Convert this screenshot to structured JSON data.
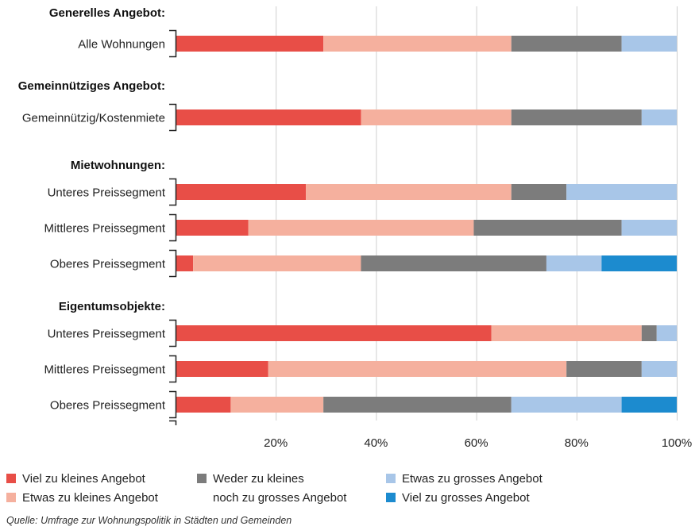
{
  "chart_data": {
    "type": "bar",
    "orientation": "horizontal",
    "stacked": true,
    "title": "",
    "xlabel": "",
    "ylabel": "",
    "xlim": [
      0,
      100
    ],
    "x_ticks": [
      "20%",
      "40%",
      "60%",
      "80%",
      "100%"
    ],
    "grid": true,
    "legend_position": "bottom",
    "groups": [
      {
        "label": "Generelles Angebot:",
        "rows": [
          {
            "label": "Alle Wohnungen",
            "values": [
              29.5,
              37.5,
              22,
              11,
              0
            ]
          }
        ]
      },
      {
        "label": "Gemeinnütziges Angebot:",
        "rows": [
          {
            "label": "Gemeinnützig/Kostenmiete",
            "values": [
              37,
              30,
              26,
              7,
              0
            ]
          }
        ]
      },
      {
        "label": "Mietwohnungen:",
        "rows": [
          {
            "label": "Unteres Preissegment",
            "values": [
              26,
              41,
              11,
              22,
              0
            ]
          },
          {
            "label": "Mittleres Preissegment",
            "values": [
              14.5,
              45,
              29.5,
              11,
              0
            ]
          },
          {
            "label": "Oberes Preissegment",
            "values": [
              3.5,
              33.5,
              37,
              11,
              15
            ]
          }
        ]
      },
      {
        "label": "Eigentumsobjekte:",
        "rows": [
          {
            "label": "Unteres Preissegment",
            "values": [
              63,
              30,
              3,
              4,
              0
            ]
          },
          {
            "label": "Mittleres Preissegment",
            "values": [
              18.5,
              59.5,
              15,
              7,
              0
            ]
          },
          {
            "label": "Oberes Preissegment",
            "values": [
              11,
              18.5,
              37.5,
              22,
              11
            ]
          }
        ]
      }
    ],
    "series": [
      {
        "name": "Viel zu kleines Angebot",
        "color": "#e84e47"
      },
      {
        "name": "Etwas zu kleines Angebot",
        "color": "#f5b09e"
      },
      {
        "name": "Weder zu kleines noch zu grosses Angebot",
        "color": "#7c7c7c"
      },
      {
        "name": "Etwas zu grosses Angebot",
        "color": "#a8c6e8"
      },
      {
        "name": "Viel zu grosses Angebot",
        "color": "#1c8bcf"
      }
    ]
  },
  "legend": {
    "viel_klein": "Viel zu kleines Angebot",
    "etwas_klein": "Etwas zu kleines Angebot",
    "weder_line1": "Weder zu kleines",
    "weder_line2": "noch zu grosses Angebot",
    "etwas_gross": "Etwas zu grosses Angebot",
    "viel_gross": "Viel zu grosses Angebot"
  },
  "source": "Quelle: Umfrage zur Wohnungspolitik in Städten und Gemeinden"
}
